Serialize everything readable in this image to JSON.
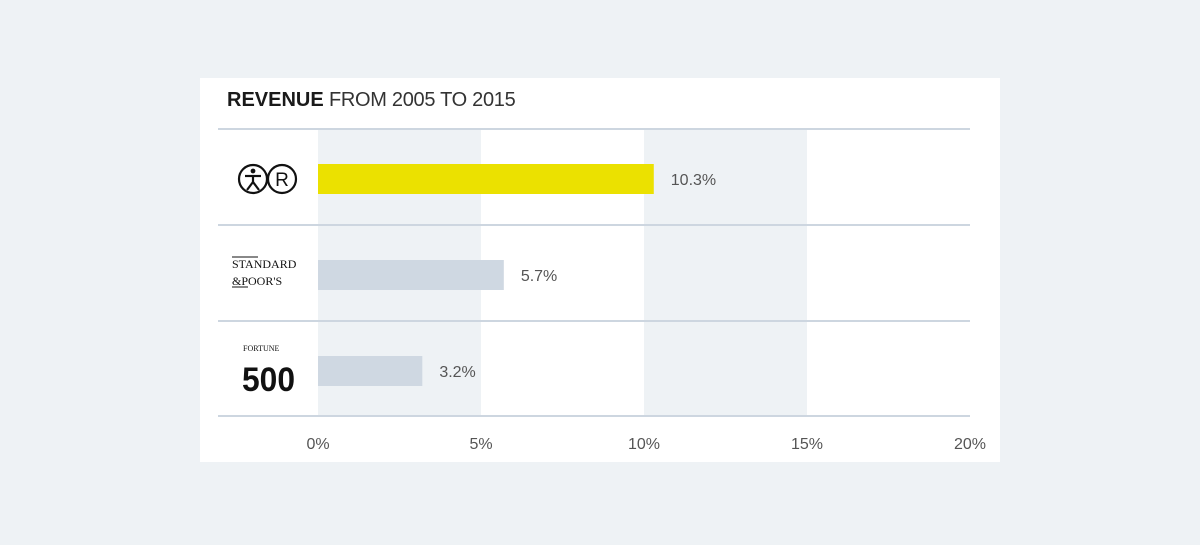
{
  "chart_data": {
    "type": "bar",
    "orientation": "horizontal",
    "title_bold": "REVENUE",
    "title_rest": "FROM 2005 TO 2015",
    "categories": [
      "XR logo",
      "STANDARD & POOR'S",
      "FORTUNE 500"
    ],
    "values": [
      10.3,
      5.7,
      3.2
    ],
    "value_labels": [
      "10.3%",
      "5.7%",
      "3.2%"
    ],
    "xlim": [
      0,
      20
    ],
    "xticks": [
      0,
      5,
      10,
      15,
      20
    ],
    "xtick_labels": [
      "0%",
      "5%",
      "10%",
      "15%",
      "20%"
    ],
    "logos": {
      "sp_line1": "STANDARD",
      "sp_line2": "&POOR'S",
      "fortune_small": "FORTUNE",
      "fortune_big": "500"
    },
    "colors": {
      "highlight_bar": "#ebe100",
      "bar": "#cfd8e2",
      "band": "#eef2f5",
      "rule": "#cdd6e0",
      "text": "#555555"
    }
  }
}
